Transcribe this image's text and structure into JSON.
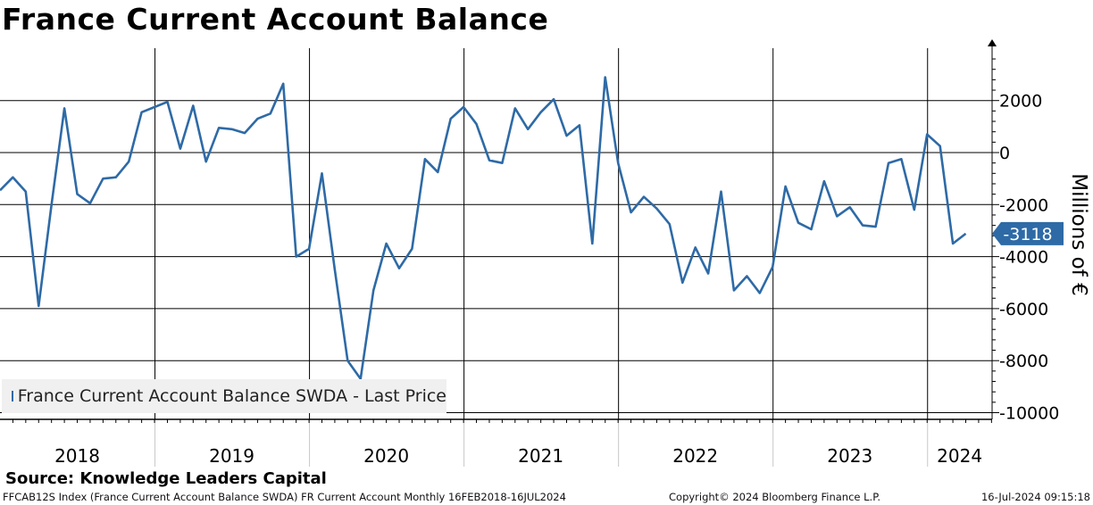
{
  "chart_data": {
    "type": "line",
    "title": "France Current Account Balance",
    "ylabel": "Millions of €",
    "xlabel": "",
    "ylim": [
      -10400,
      4000
    ],
    "yticks": [
      2000,
      0,
      -2000,
      -4000,
      -6000,
      -8000,
      -10000
    ],
    "year_labels": [
      "2018",
      "2019",
      "2020",
      "2021",
      "2022",
      "2023",
      "2024"
    ],
    "series": [
      {
        "name": "France Current Account Balance SWDA - Last Price",
        "color": "#2e6aa6",
        "start": "2018-01",
        "values": [
          -1450,
          -950,
          -1500,
          -5900,
          -2000,
          1700,
          -1600,
          -1950,
          -1000,
          -950,
          -350,
          1550,
          1750,
          1950,
          150,
          1800,
          -350,
          950,
          900,
          750,
          1300,
          1500,
          2650,
          -4000,
          -3700,
          -800,
          -4500,
          -8000,
          -8700,
          -5300,
          -3500,
          -4450,
          -3700,
          -250,
          -750,
          1300,
          1750,
          1100,
          -300,
          -400,
          1700,
          900,
          1550,
          2050,
          650,
          1050,
          -3500,
          2900,
          -400,
          -2300,
          -1700,
          -2150,
          -2750,
          -5000,
          -3650,
          -4650,
          -1500,
          -5300,
          -4750,
          -5400,
          -4400,
          -1300,
          -2700,
          -2950,
          -1100,
          -2450,
          -2100,
          -2800,
          -2850,
          -400,
          -250,
          -2200,
          700,
          250,
          -3500,
          -3118
        ]
      }
    ],
    "last_value_label": "-3118"
  },
  "footer": {
    "source": "Source: Knowledge Leaders Capital",
    "index_info": "FFCAB12S Index (France Current Account Balance SWDA) FR Current Account  Monthly 16FEB2018-16JUL2024",
    "copyright": "Copyright© 2024 Bloomberg Finance L.P.",
    "timestamp": "16-Jul-2024 09:15:18"
  }
}
